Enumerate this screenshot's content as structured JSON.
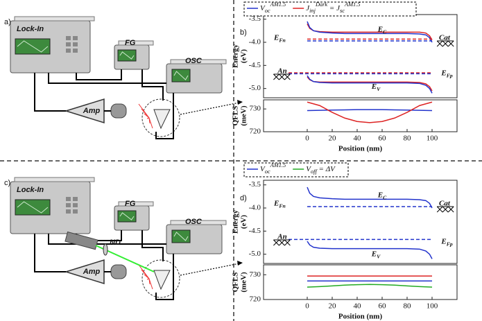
{
  "setups": [
    {
      "label": "a)",
      "lock_in": "Lock-In",
      "fg": "FG",
      "osc": "OSC",
      "amp": "Amp"
    },
    {
      "label": "c)",
      "lock_in": "Lock-In",
      "fg": "FG",
      "osc": "OSC",
      "amp": "Amp",
      "nd": "ND"
    }
  ],
  "chart_data": [
    {
      "type": "line",
      "label": "b)",
      "legend": [
        {
          "color": "#2233cc",
          "parts": [
            {
              "t": "V"
            },
            {
              "t": "oc",
              "pos": "sub"
            },
            {
              "t": "AM1.5",
              "pos": "sup"
            }
          ]
        },
        {
          "color": "#dd2222",
          "parts": [
            {
              "t": "J"
            },
            {
              "t": "inj",
              "pos": "sub"
            },
            {
              "t": "Dark",
              "pos": "sup"
            },
            {
              "t": " = J"
            },
            {
              "t": "sc",
              "pos": "sub"
            },
            {
              "t": "AM1.5",
              "pos": "sup"
            }
          ]
        }
      ],
      "ylabel": [
        "Energy",
        "(eV)"
      ],
      "xlim": [
        -35,
        120
      ],
      "ylim": [
        -5.2,
        -3.4
      ],
      "yticks": [
        -3.5,
        {
          "value": -4,
          "label": "-4.0"
        },
        -4.5,
        {
          "value": -5,
          "label": "-5.0"
        }
      ],
      "series": [
        {
          "color": "#dd2222",
          "x": [
            0,
            2,
            5,
            10,
            20,
            30,
            40,
            50,
            60,
            70,
            80,
            90,
            95,
            98,
            100
          ],
          "values": [
            -3.6,
            -3.7,
            -3.75,
            -3.77,
            -3.78,
            -3.78,
            -3.78,
            -3.78,
            -3.78,
            -3.78,
            -3.78,
            -3.78,
            -3.8,
            -3.86,
            -3.95
          ]
        },
        {
          "color": "#2233cc",
          "x": [
            0,
            2,
            5,
            10,
            20,
            30,
            40,
            50,
            60,
            70,
            80,
            90,
            95,
            98,
            100
          ],
          "values": [
            -3.55,
            -3.68,
            -3.75,
            -3.78,
            -3.8,
            -3.81,
            -3.81,
            -3.81,
            -3.81,
            -3.81,
            -3.81,
            -3.82,
            -3.84,
            -3.9,
            -4.0
          ]
        },
        {
          "color": "#dd2222",
          "dash": true,
          "x": [
            0,
            100
          ],
          "values": [
            -3.93,
            -3.93
          ]
        },
        {
          "color": "#2233cc",
          "dash": true,
          "x": [
            0,
            100
          ],
          "values": [
            -3.97,
            -3.97
          ]
        },
        {
          "color": "#dd2222",
          "dash": true,
          "x": [
            -15,
            100
          ],
          "values": [
            -4.66,
            -4.66
          ]
        },
        {
          "color": "#2233cc",
          "dash": true,
          "x": [
            -15,
            100
          ],
          "values": [
            -4.68,
            -4.68
          ]
        },
        {
          "color": "#dd2222",
          "x": [
            0,
            2,
            5,
            10,
            20,
            30,
            40,
            50,
            60,
            70,
            80,
            90,
            95,
            98,
            100
          ],
          "values": [
            -4.75,
            -4.81,
            -4.85,
            -4.86,
            -4.86,
            -4.86,
            -4.86,
            -4.86,
            -4.86,
            -4.86,
            -4.86,
            -4.87,
            -4.9,
            -4.96,
            -5.05
          ]
        },
        {
          "color": "#2233cc",
          "x": [
            0,
            2,
            5,
            10,
            20,
            30,
            40,
            50,
            60,
            70,
            80,
            90,
            95,
            98,
            100
          ],
          "values": [
            -4.72,
            -4.8,
            -4.85,
            -4.87,
            -4.88,
            -4.88,
            -4.88,
            -4.88,
            -4.88,
            -4.88,
            -4.88,
            -4.89,
            -4.93,
            -5.0,
            -5.1
          ]
        }
      ],
      "annotations": [
        {
          "parts": [
            {
              "t": "E"
            },
            {
              "t": "C",
              "pos": "sub"
            }
          ]
        },
        {
          "parts": [
            {
              "t": "E"
            },
            {
              "t": "Fn",
              "pos": "sub"
            }
          ]
        },
        {
          "parts": [
            {
              "t": "Cat"
            }
          ]
        },
        {
          "parts": [
            {
              "t": "An"
            }
          ]
        },
        {
          "parts": [
            {
              "t": "E"
            },
            {
              "t": "Fp",
              "pos": "sub"
            }
          ]
        },
        {
          "parts": [
            {
              "t": "E"
            },
            {
              "t": "V",
              "pos": "sub"
            }
          ]
        }
      ]
    },
    {
      "type": "line",
      "ylabel": [
        "QFLS",
        "(meV)"
      ],
      "xlabel": "Position (nm)",
      "xlim": [
        -35,
        120
      ],
      "ylim": [
        720,
        734
      ],
      "yticks": [
        720,
        730
      ],
      "xticks": [
        0,
        20,
        40,
        60,
        80,
        100
      ],
      "series": [
        {
          "color": "#2233cc",
          "x": [
            0,
            10,
            20,
            30,
            40,
            50,
            60,
            70,
            80,
            90,
            100
          ],
          "values": [
            729.3,
            729.4,
            729.5,
            729.6,
            729.7,
            729.7,
            729.7,
            729.6,
            729.5,
            729.4,
            729.3
          ]
        },
        {
          "color": "#dd2222",
          "x": [
            0,
            10,
            20,
            30,
            40,
            50,
            60,
            70,
            80,
            90,
            100
          ],
          "values": [
            733,
            731.5,
            728.5,
            726,
            724.5,
            724,
            724.5,
            726,
            728.5,
            731.5,
            733
          ]
        }
      ]
    },
    {
      "type": "line",
      "label": "d)",
      "legend": [
        {
          "color": "#2233cc",
          "parts": [
            {
              "t": "V"
            },
            {
              "t": "oc",
              "pos": "sub"
            },
            {
              "t": "AM1.5",
              "pos": "sup"
            }
          ]
        },
        {
          "color": "#22aa22",
          "parts": [
            {
              "t": "V"
            },
            {
              "t": "off",
              "pos": "sub"
            },
            {
              "t": " = ΔV"
            }
          ]
        }
      ],
      "ylabel": [
        "Energy",
        "(eV)"
      ],
      "xlim": [
        -35,
        120
      ],
      "ylim": [
        -5.2,
        -3.4
      ],
      "yticks": [
        -3.5,
        {
          "value": -4,
          "label": "-4.0"
        },
        -4.5,
        {
          "value": -5,
          "label": "-5.0"
        }
      ],
      "series": [
        {
          "color": "#2233cc",
          "x": [
            0,
            2,
            5,
            10,
            20,
            30,
            40,
            50,
            60,
            70,
            80,
            90,
            95,
            98,
            100
          ],
          "values": [
            -3.55,
            -3.68,
            -3.75,
            -3.78,
            -3.8,
            -3.81,
            -3.81,
            -3.81,
            -3.81,
            -3.81,
            -3.81,
            -3.82,
            -3.84,
            -3.9,
            -4.0
          ]
        },
        {
          "color": "#2233cc",
          "dash": true,
          "x": [
            0,
            100
          ],
          "values": [
            -3.97,
            -3.97
          ]
        },
        {
          "color": "#2233cc",
          "dash": true,
          "x": [
            -15,
            100
          ],
          "values": [
            -4.68,
            -4.68
          ]
        },
        {
          "color": "#2233cc",
          "x": [
            0,
            2,
            5,
            10,
            20,
            30,
            40,
            50,
            60,
            70,
            80,
            90,
            95,
            98,
            100
          ],
          "values": [
            -4.72,
            -4.8,
            -4.85,
            -4.87,
            -4.88,
            -4.88,
            -4.88,
            -4.88,
            -4.88,
            -4.88,
            -4.88,
            -4.89,
            -4.93,
            -5.0,
            -5.1
          ]
        }
      ],
      "annotations": [
        {
          "parts": [
            {
              "t": "E"
            },
            {
              "t": "C",
              "pos": "sub"
            }
          ]
        },
        {
          "parts": [
            {
              "t": "E"
            },
            {
              "t": "Fn",
              "pos": "sub"
            }
          ]
        },
        {
          "parts": [
            {
              "t": "Cat"
            }
          ]
        },
        {
          "parts": [
            {
              "t": "An"
            }
          ]
        },
        {
          "parts": [
            {
              "t": "E"
            },
            {
              "t": "Fp",
              "pos": "sub"
            }
          ]
        },
        {
          "parts": [
            {
              "t": "E"
            },
            {
              "t": "V",
              "pos": "sub"
            }
          ]
        }
      ]
    },
    {
      "type": "line",
      "ylabel": [
        "QFLS",
        "(meV)"
      ],
      "xlabel": "Position (nm)",
      "xlim": [
        -35,
        120
      ],
      "ylim": [
        720,
        734
      ],
      "yticks": [
        720,
        730
      ],
      "xticks": [
        0,
        20,
        40,
        60,
        80,
        100
      ],
      "series": [
        {
          "color": "#dd2222",
          "x": [
            0,
            20,
            40,
            60,
            80,
            100
          ],
          "values": [
            729.5,
            729.5,
            729.5,
            729.5,
            729.5,
            729.5
          ]
        },
        {
          "color": "#2233cc",
          "x": [
            0,
            20,
            40,
            60,
            80,
            100
          ],
          "values": [
            727.5,
            727.5,
            727.5,
            727.5,
            727.5,
            727.5
          ]
        },
        {
          "color": "#22aa22",
          "x": [
            0,
            10,
            20,
            30,
            40,
            50,
            60,
            70,
            80,
            90,
            100
          ],
          "values": [
            725,
            725.2,
            725.5,
            725.8,
            726,
            726.1,
            726,
            725.8,
            725.5,
            725.2,
            725
          ]
        }
      ]
    }
  ]
}
